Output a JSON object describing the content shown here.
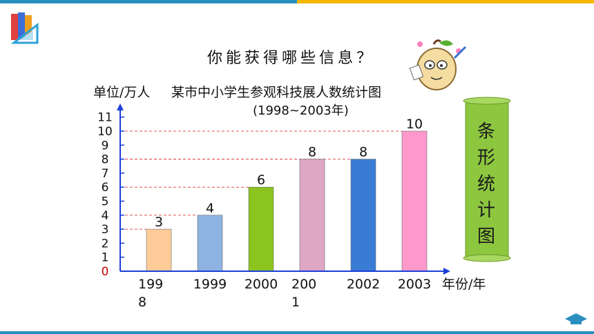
{
  "header": {
    "question": "你能获得哪些信息？"
  },
  "side_banner": {
    "chars": [
      "条",
      "形",
      "统",
      "计",
      "图"
    ]
  },
  "colors": {
    "top_bar_left": "#2a8fbf",
    "top_bar_right": "#f5b800",
    "banner_green": "#8dc63f",
    "zero_label": "#cc0000",
    "reference_line": "#e05050",
    "axis": "#1a3fd8"
  },
  "chart_data": {
    "type": "bar",
    "title": "某市中小学生参观科技展人数统计图",
    "subtitle": "(1998~2003年)",
    "ylabel": "单位/万人",
    "xlabel": "年份/年",
    "categories": [
      "1998",
      "1999",
      "2000",
      "2001",
      "2002",
      "2003"
    ],
    "category_labels": [
      [
        "199",
        "8"
      ],
      [
        "1999"
      ],
      [
        "2000"
      ],
      [
        "200",
        "1"
      ],
      [
        "2002"
      ],
      [
        "2003"
      ]
    ],
    "values": [
      3,
      4,
      6,
      8,
      8,
      10
    ],
    "value_labels": [
      "3",
      "4",
      "6",
      "8",
      "8",
      "10"
    ],
    "bar_colors": [
      "#ffcc99",
      "#8fb3e0",
      "#8cc41f",
      "#dea7c4",
      "#3a7bd5",
      "#ff99cc"
    ],
    "y_ticks": [
      "0",
      "1",
      "2",
      "3",
      "4",
      "5",
      "6",
      "7",
      "8",
      "9",
      "10",
      "11"
    ],
    "ylim": [
      0,
      11
    ],
    "grid": false,
    "reference_lines": true
  }
}
